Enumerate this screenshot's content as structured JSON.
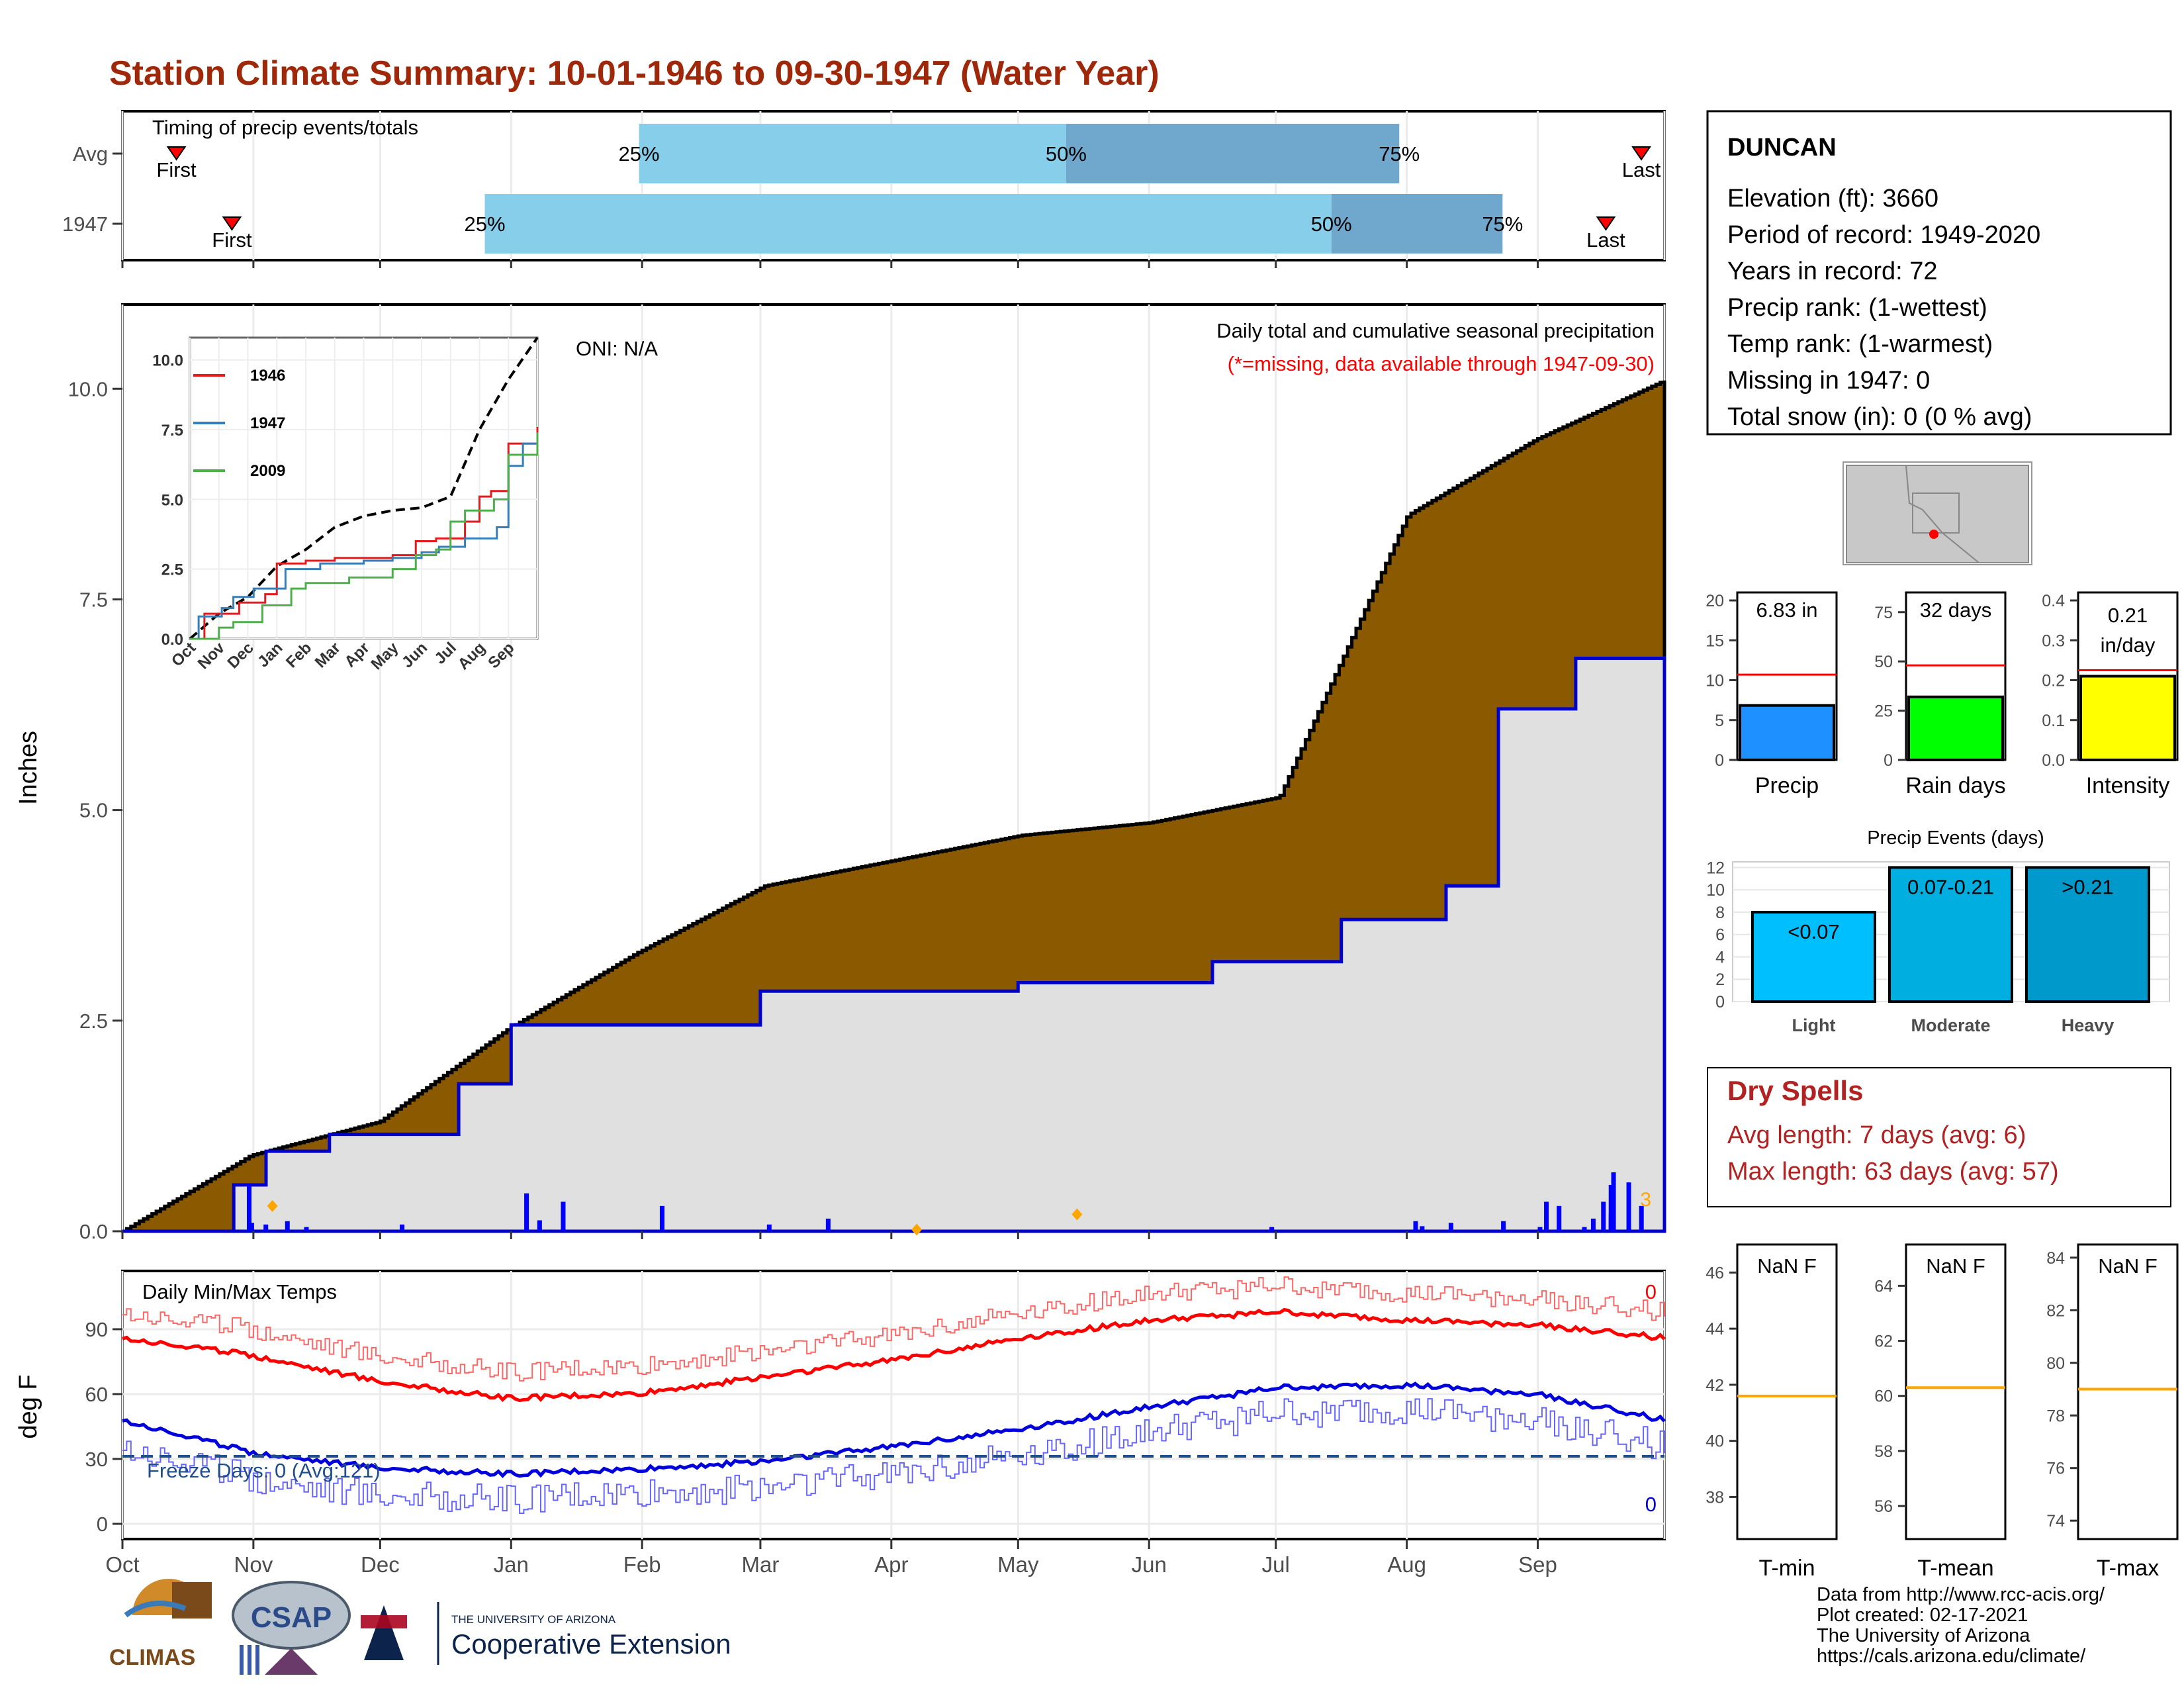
{
  "title": "Station Climate Summary: 10-01-1946 to 09-30-1947 (Water Year)",
  "colors": {
    "title": "#a0280a",
    "cumulative_fill": "#8b5a00",
    "avg_fill": "#e0e0e0",
    "year_line": "#0000cc",
    "max_temp": "#ff0000",
    "min_temp": "#0000dd",
    "freeze_line": "#1f4e8c",
    "timing_light": "#87ceeb",
    "timing_dark": "#6fa8cc",
    "precip_bar": "#1e90ff",
    "raindays_bar": "#00ff00",
    "intensity_bar": "#ffff00",
    "events_light": "#00bfff",
    "events_moderate": "#00aee0",
    "events_heavy": "#0099cc",
    "reference_line": "#ff0000",
    "temp_avg_line": "#ffa500",
    "dry_spell_text": "#b22222"
  },
  "timing": {
    "label": "Timing of precip events/totals",
    "rows": [
      {
        "name": "Avg",
        "first_label": "First",
        "last_label": "Last",
        "first_pos": 0.035,
        "last_pos": 0.985,
        "p25": 0.335,
        "p50": 0.612,
        "p75": 0.828,
        "p25_label": "25%",
        "p50_label": "50%",
        "p75_label": "75%"
      },
      {
        "name": "1947",
        "first_label": "First",
        "last_label": "Last",
        "first_pos": 0.071,
        "last_pos": 0.962,
        "p25": 0.235,
        "p50": 0.784,
        "p75": 0.895,
        "p25_label": "25%",
        "p50_label": "50%",
        "p75_label": "75%"
      }
    ]
  },
  "main": {
    "ylabel": "Inches",
    "y_ticks": [
      "0.0",
      "2.5",
      "5.0",
      "7.5",
      "10.0"
    ],
    "oni": "ONI: N/A",
    "caption1": "Daily total and cumulative seasonal precipitation",
    "caption2": "(*=missing, data available through 1947-09-30)",
    "corner_count": "3"
  },
  "months": [
    "Oct",
    "Nov",
    "Dec",
    "Jan",
    "Feb",
    "Mar",
    "Apr",
    "May",
    "Jun",
    "Jul",
    "Aug",
    "Sep"
  ],
  "inset": {
    "y_ticks": [
      "0.0",
      "2.5",
      "5.0",
      "7.5",
      "10.0"
    ],
    "x_ticks": [
      "Oct",
      "Nov",
      "Dec",
      "Jan",
      "Feb",
      "Mar",
      "Apr",
      "May",
      "Jun",
      "Jul",
      "Aug",
      "Sep"
    ],
    "legend": [
      "1946",
      "1947",
      "2009"
    ]
  },
  "temps": {
    "label": "Daily Min/Max Temps",
    "ylabel": "deg F",
    "y_ticks": [
      "0",
      "30",
      "60",
      "90"
    ],
    "freeze_label": "Freeze Days: 0 (Avg:121)",
    "max_count": "0",
    "min_count": "0"
  },
  "station": {
    "name": "DUNCAN",
    "lines": [
      "Elevation (ft): 3660",
      "Period of record: 1949-2020",
      "Years in record: 72",
      "Precip rank:  (1-wettest)",
      "Temp rank:  (1-warmest)",
      "Missing in 1947: 0",
      "Total snow (in): 0 (0 % avg)"
    ]
  },
  "mini_bars": [
    {
      "label": "Precip",
      "value_label": "6.83 in",
      "value": 6.83,
      "reference": 10.7,
      "max": 21,
      "ticks": [
        "0",
        "5",
        "10",
        "15",
        "20"
      ],
      "tick_vals": [
        0,
        5,
        10,
        15,
        20
      ]
    },
    {
      "label": "Rain days",
      "value_label": "32 days",
      "value": 32,
      "reference": 48,
      "max": 85,
      "ticks": [
        "0",
        "25",
        "50",
        "75"
      ],
      "tick_vals": [
        0,
        25,
        50,
        75
      ]
    },
    {
      "label": "Intensity",
      "value_label": "0.21 in/day",
      "value": 0.21,
      "reference": 0.225,
      "max": 0.42,
      "ticks": [
        "0.0",
        "0.1",
        "0.2",
        "0.3",
        "0.4"
      ],
      "tick_vals": [
        0,
        0.1,
        0.2,
        0.3,
        0.4
      ]
    }
  ],
  "precip_events": {
    "title": "Precip Events (days)",
    "categories": [
      "Light",
      "Moderate",
      "Heavy"
    ],
    "bar_labels": [
      "<0.07",
      "0.07-0.21",
      ">0.21"
    ],
    "values": [
      8,
      12,
      12
    ],
    "y_ticks": [
      "0",
      "2",
      "4",
      "6",
      "8",
      "10",
      "12"
    ]
  },
  "dry_spells": {
    "title": "Dry Spells",
    "avg_line": "Avg length: 7 days (avg: 6)",
    "max_line": "Max length: 63 days (avg: 57)"
  },
  "temp_boxes": [
    {
      "label": "T-min",
      "value_label": "NaN F",
      "ticks": [
        "38",
        "40",
        "42",
        "44",
        "46"
      ],
      "tick_vals": [
        38,
        40,
        42,
        44,
        46
      ],
      "min": 36.5,
      "max": 47,
      "avg": 41.6
    },
    {
      "label": "T-mean",
      "value_label": "NaN F",
      "ticks": [
        "56",
        "58",
        "60",
        "62",
        "64"
      ],
      "tick_vals": [
        56,
        58,
        60,
        62,
        64
      ],
      "min": 54.8,
      "max": 65.5,
      "avg": 60.3
    },
    {
      "label": "T-max",
      "value_label": "NaN F",
      "ticks": [
        "74",
        "76",
        "78",
        "80",
        "82",
        "84"
      ],
      "tick_vals": [
        74,
        76,
        78,
        80,
        82,
        84
      ],
      "min": 73.3,
      "max": 84.5,
      "avg": 79
    }
  ],
  "credits": [
    "Data from http://www.rcc-acis.org/",
    "Plot created: 02-17-2021",
    "The University of Arizona",
    "https://cals.arizona.edu/climate/"
  ],
  "logos": {
    "climas": "CLIMAS",
    "csap": "CSAP",
    "ua_small": "THE UNIVERSITY OF ARIZONA",
    "ua_ext": "Cooperative Extension"
  },
  "chart_data": [
    {
      "type": "area",
      "title": "Daily total and cumulative seasonal precipitation",
      "ylabel": "Inches",
      "ylim": [
        0,
        11
      ],
      "x_categories": [
        "Oct",
        "Nov",
        "Dec",
        "Jan",
        "Feb",
        "Mar",
        "Apr",
        "May",
        "Jun",
        "Jul",
        "Aug",
        "Sep"
      ],
      "series": [
        {
          "name": "average cumulative",
          "x_month": [
            0,
            1,
            2,
            3,
            4,
            5,
            6,
            7,
            8,
            9,
            10,
            11,
            12
          ],
          "values": [
            0,
            0.9,
            1.3,
            2.4,
            3.3,
            4.1,
            4.4,
            4.7,
            4.85,
            5.15,
            8.5,
            9.4,
            10.1
          ]
        },
        {
          "name": "1947 cumulative",
          "x_month": [
            0,
            0.85,
            1.1,
            1.6,
            2.6,
            3.0,
            3.5,
            5.0,
            7.0,
            8.5,
            9.5,
            10.3,
            10.7,
            11.3,
            12
          ],
          "values": [
            0,
            0.55,
            0.95,
            1.15,
            1.75,
            2.45,
            2.45,
            2.85,
            2.95,
            3.2,
            3.7,
            4.1,
            6.2,
            6.8,
            6.83
          ]
        }
      ]
    },
    {
      "type": "line",
      "title": "Daily Min/Max Temps",
      "ylabel": "deg F",
      "ylim": [
        -5,
        113
      ],
      "series": [
        {
          "name": "avg max",
          "x_month": [
            0,
            1,
            2,
            3,
            4,
            5,
            6,
            7,
            8,
            9,
            10,
            11,
            12
          ],
          "values": [
            86,
            78,
            66,
            58,
            60,
            68,
            76,
            86,
            94,
            98,
            94,
            92,
            86
          ]
        },
        {
          "name": "avg min",
          "x_month": [
            0,
            1,
            2,
            3,
            4,
            5,
            6,
            7,
            8,
            9,
            10,
            11,
            12
          ],
          "values": [
            48,
            33,
            26,
            23,
            25,
            29,
            36,
            44,
            54,
            63,
            64,
            60,
            48
          ]
        }
      ]
    }
  ]
}
